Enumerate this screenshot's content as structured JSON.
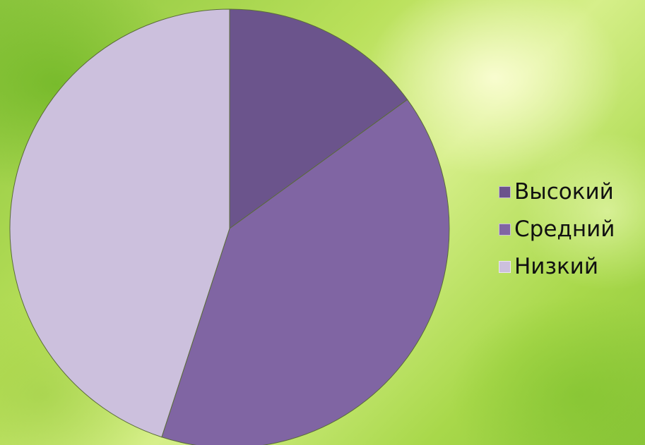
{
  "chart_data": {
    "type": "pie",
    "start_angle_deg": 0,
    "direction": "clockwise",
    "legend_position": "right",
    "series": [
      {
        "name": "Высокий",
        "value": 15,
        "color": "#6b548c"
      },
      {
        "name": "Средний",
        "value": 40,
        "color": "#8065a3"
      },
      {
        "name": "Низкий",
        "value": 45,
        "color": "#ccc0dd"
      }
    ],
    "slice_border_color": "#5a6b3a"
  }
}
